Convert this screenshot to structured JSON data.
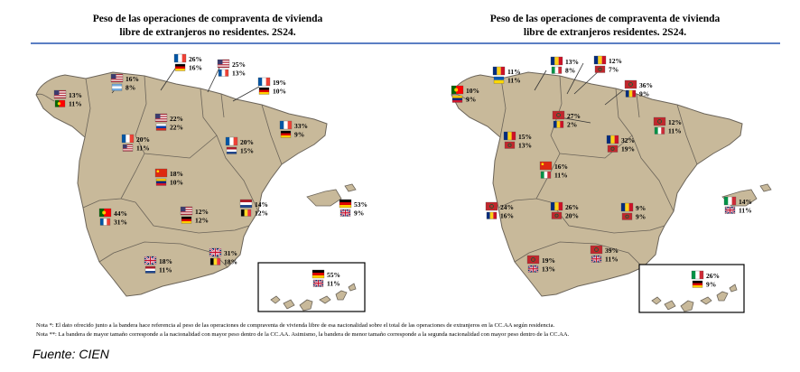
{
  "maps": [
    {
      "title_line1": "Peso de las operaciones de compraventa de vivienda",
      "title_line2": "libre de extranjeros no residentes. 2S24.",
      "labels": [
        {
          "region": "Galicia",
          "entries": [
            {
              "flag": "usa",
              "pct": "13%"
            },
            {
              "flag": "portugal",
              "pct": "11%"
            }
          ]
        },
        {
          "region": "Asturias",
          "entries": [
            {
              "flag": "usa",
              "pct": "16%"
            },
            {
              "flag": "argentina",
              "pct": "8%"
            }
          ]
        },
        {
          "region": "Cantabria",
          "entries": [
            {
              "flag": "france",
              "pct": "26%"
            },
            {
              "flag": "germany",
              "pct": "16%"
            }
          ]
        },
        {
          "region": "País Vasco",
          "entries": [
            {
              "flag": "usa",
              "pct": "25%"
            },
            {
              "flag": "france",
              "pct": "13%"
            }
          ]
        },
        {
          "region": "Navarra",
          "entries": [
            {
              "flag": "france",
              "pct": "19%"
            },
            {
              "flag": "germany",
              "pct": "10%"
            }
          ]
        },
        {
          "region": "Castilla y León",
          "entries": [
            {
              "flag": "usa",
              "pct": "22%"
            },
            {
              "flag": "russia",
              "pct": "22%"
            }
          ]
        },
        {
          "region": "Cataluña",
          "entries": [
            {
              "flag": "france",
              "pct": "33%"
            },
            {
              "flag": "germany",
              "pct": "9%"
            }
          ]
        },
        {
          "region": "Aragón",
          "entries": [
            {
              "flag": "france",
              "pct": "20%"
            },
            {
              "flag": "netherlands",
              "pct": "15%"
            }
          ]
        },
        {
          "region": "Castilla y León Sur",
          "entries": [
            {
              "flag": "france",
              "pct": "20%"
            },
            {
              "flag": "usa",
              "pct": "11%"
            }
          ]
        },
        {
          "region": "Madrid",
          "entries": [
            {
              "flag": "china",
              "pct": "18%"
            },
            {
              "flag": "venezuela",
              "pct": "10%"
            }
          ]
        },
        {
          "region": "Baleares",
          "entries": [
            {
              "flag": "germany",
              "pct": "53%"
            },
            {
              "flag": "uk",
              "pct": "9%"
            }
          ]
        },
        {
          "region": "Comunidad Valenciana",
          "entries": [
            {
              "flag": "netherlands",
              "pct": "14%"
            },
            {
              "flag": "belgium",
              "pct": "12%"
            }
          ]
        },
        {
          "region": "Extremadura",
          "entries": [
            {
              "flag": "portugal",
              "pct": "44%"
            },
            {
              "flag": "france",
              "pct": "31%"
            }
          ]
        },
        {
          "region": "Castilla-La Mancha",
          "entries": [
            {
              "flag": "usa",
              "pct": "12%"
            },
            {
              "flag": "germany",
              "pct": "12%"
            }
          ]
        },
        {
          "region": "Murcia",
          "entries": [
            {
              "flag": "uk",
              "pct": "31%"
            },
            {
              "flag": "belgium",
              "pct": "18%"
            }
          ]
        },
        {
          "region": "Andalucía",
          "entries": [
            {
              "flag": "uk",
              "pct": "18%"
            },
            {
              "flag": "netherlands",
              "pct": "11%"
            }
          ]
        },
        {
          "region": "Canarias",
          "entries": [
            {
              "flag": "germany",
              "pct": "55%"
            },
            {
              "flag": "uk",
              "pct": "11%"
            }
          ]
        }
      ]
    },
    {
      "title_line1": "Peso de las operaciones de compraventa de vivienda",
      "title_line2": "libre de extranjeros residentes. 2S24.",
      "labels": [
        {
          "region": "Galicia",
          "entries": [
            {
              "flag": "portugal",
              "pct": "10%"
            },
            {
              "flag": "venezuela",
              "pct": "9%"
            }
          ]
        },
        {
          "region": "Asturias",
          "entries": [
            {
              "flag": "romania",
              "pct": "11%"
            },
            {
              "flag": "ukraine",
              "pct": "11%"
            }
          ]
        },
        {
          "region": "Cantabria",
          "entries": [
            {
              "flag": "romania",
              "pct": "13%"
            },
            {
              "flag": "italy",
              "pct": "8%"
            }
          ]
        },
        {
          "region": "País Vasco",
          "entries": [
            {
              "flag": "romania",
              "pct": "12%"
            },
            {
              "flag": "morocco",
              "pct": "7%"
            }
          ]
        },
        {
          "region": "Navarra",
          "entries": [
            {
              "flag": "morocco",
              "pct": "36%"
            },
            {
              "flag": "romania",
              "pct": "9%"
            }
          ]
        },
        {
          "region": "La Rioja",
          "entries": [
            {
              "flag": "morocco",
              "pct": "27%"
            },
            {
              "flag": "romania",
              "pct": "2%"
            }
          ]
        },
        {
          "region": "Cataluña",
          "entries": [
            {
              "flag": "morocco",
              "pct": "12%"
            },
            {
              "flag": "italy",
              "pct": "11%"
            }
          ]
        },
        {
          "region": "Castilla y León",
          "entries": [
            {
              "flag": "romania",
              "pct": "15%"
            },
            {
              "flag": "morocco",
              "pct": "13%"
            }
          ]
        },
        {
          "region": "Aragón",
          "entries": [
            {
              "flag": "romania",
              "pct": "32%"
            },
            {
              "flag": "morocco",
              "pct": "19%"
            }
          ]
        },
        {
          "region": "Madrid",
          "entries": [
            {
              "flag": "china",
              "pct": "16%"
            },
            {
              "flag": "italy",
              "pct": "11%"
            }
          ]
        },
        {
          "region": "Baleares",
          "entries": [
            {
              "flag": "italy",
              "pct": "14%"
            },
            {
              "flag": "uk",
              "pct": "11%"
            }
          ]
        },
        {
          "region": "Extremadura",
          "entries": [
            {
              "flag": "morocco",
              "pct": "24%"
            },
            {
              "flag": "romania",
              "pct": "16%"
            }
          ]
        },
        {
          "region": "Castilla-La Mancha",
          "entries": [
            {
              "flag": "romania",
              "pct": "26%"
            },
            {
              "flag": "morocco",
              "pct": "20%"
            }
          ]
        },
        {
          "region": "Comunidad Valenciana",
          "entries": [
            {
              "flag": "romania",
              "pct": "9%"
            },
            {
              "flag": "morocco",
              "pct": "9%"
            }
          ]
        },
        {
          "region": "Murcia",
          "entries": [
            {
              "flag": "morocco",
              "pct": "39%"
            },
            {
              "flag": "uk",
              "pct": "11%"
            }
          ]
        },
        {
          "region": "Andalucía",
          "entries": [
            {
              "flag": "morocco",
              "pct": "19%"
            },
            {
              "flag": "uk",
              "pct": "13%"
            }
          ]
        },
        {
          "region": "Canarias",
          "entries": [
            {
              "flag": "italy",
              "pct": "26%"
            },
            {
              "flag": "germany",
              "pct": "9%"
            }
          ]
        }
      ]
    }
  ],
  "notes": {
    "note1": "Nota *: El dato ofrecido junto a la bandera hace referencia al peso de las operaciones de compraventa de vivienda libre de esa nacionalidad sobre el total de las operaciones de extranjeros en la CC.AA según residencia.",
    "note2": "Nota **: La bandera de mayor tamaño corresponde a la nacionalidad con mayor peso dentro de la CC.AA. Asimismo, la bandera de menor tamaño corresponde a la segunda nacionalidad con mayor peso dentro de la CC.AA."
  },
  "source": "Fuente: CIEN",
  "colors": {
    "land": "#c8b99a",
    "border": "#6b6459",
    "divider": "#5b7fc4"
  }
}
